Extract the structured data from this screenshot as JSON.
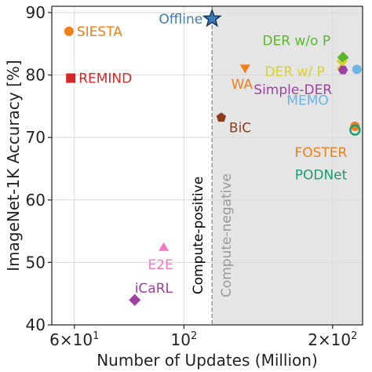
{
  "chart_data": {
    "type": "scatter",
    "xlabel": "Number of Updates (Million)",
    "ylabel": "ImageNet-1K  Accuracy [%]",
    "xscale": "log",
    "xlim": [
      54,
      230
    ],
    "ylim": [
      40,
      91
    ],
    "grid": true,
    "x_ticks": [
      {
        "value": 60,
        "label": "6×10",
        "sup": "1"
      },
      {
        "value": 100,
        "label": "10",
        "sup": "2"
      },
      {
        "value": 200,
        "label": "2×10",
        "sup": "2"
      }
    ],
    "y_ticks": [
      40,
      50,
      60,
      70,
      80,
      90
    ],
    "threshold": {
      "x": 114
    },
    "regions": [
      {
        "side": "left",
        "label": "Compute-positive",
        "color": "#000000"
      },
      {
        "side": "right",
        "label": "Compute-negative",
        "color": "#999999"
      }
    ],
    "points": [
      {
        "name": "SIESTA",
        "x": 58.5,
        "y": 87.0,
        "marker": "circle",
        "color": "#f07f1a",
        "label_pos": "right"
      },
      {
        "name": "REMIND",
        "x": 59.0,
        "y": 79.5,
        "marker": "square",
        "color": "#d62728",
        "label_pos": "right"
      },
      {
        "name": "Offline",
        "x": 114,
        "y": 89.0,
        "marker": "star",
        "color": "#3d7ab8",
        "label_pos": "left"
      },
      {
        "name": "BiC",
        "x": 119,
        "y": 73.2,
        "marker": "pentagon",
        "color": "#8c3c1e",
        "label_pos": "below-right"
      },
      {
        "name": "WA",
        "x": 133,
        "y": 81.2,
        "marker": "triangle-down",
        "color": "#f07f1a",
        "label_pos": "below"
      },
      {
        "name": "DER w/o P",
        "x": 210,
        "y": 82.8,
        "marker": "diamond",
        "color": "#5cb82b",
        "label_pos": "above-left"
      },
      {
        "name": "DER w/ P",
        "x": 209,
        "y": 81.6,
        "marker": "x",
        "color": "#d9d22a",
        "label_pos": "left"
      },
      {
        "name": "Simple-DER",
        "x": 210,
        "y": 80.8,
        "marker": "hexagon",
        "color": "#9e3fa3",
        "label_pos": "below-left"
      },
      {
        "name": "MEMO",
        "x": 224,
        "y": 80.9,
        "marker": "circle",
        "color": "#6cb4e6",
        "label_pos": "below-left"
      },
      {
        "name": "FOSTER",
        "x": 222,
        "y": 71.8,
        "marker": "circle",
        "color": "#f07f1a",
        "label_pos": "below-left"
      },
      {
        "name": "PODNet",
        "x": 222,
        "y": 71.2,
        "marker": "circle-open",
        "color": "#1a9e77",
        "label_pos": "below-left"
      },
      {
        "name": "E2E",
        "x": 91,
        "y": 52.3,
        "marker": "triangle-up",
        "color": "#f07ac0",
        "label_pos": "below"
      },
      {
        "name": "iCaRL",
        "x": 79.5,
        "y": 44.0,
        "marker": "diamond",
        "color": "#9e3fa3",
        "label_pos": "above-right"
      }
    ]
  }
}
